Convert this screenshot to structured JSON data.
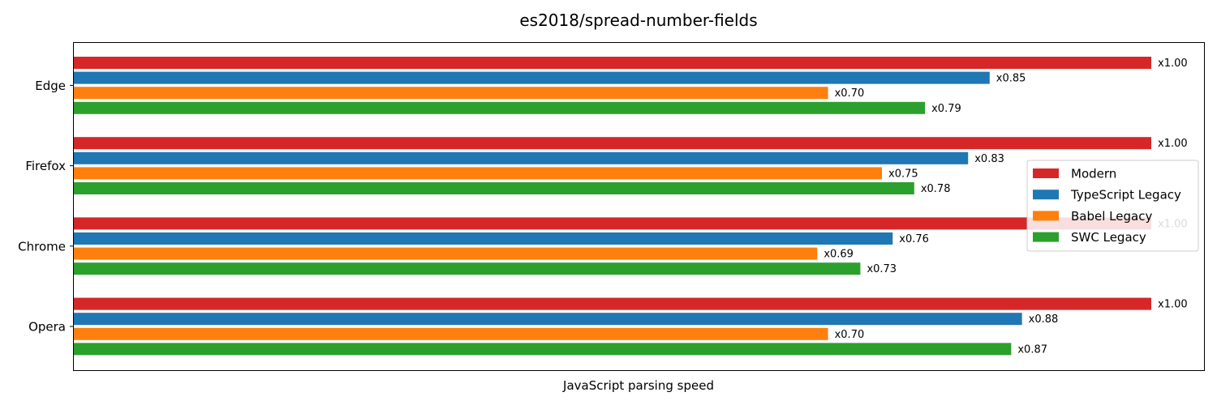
{
  "chart_data": {
    "type": "bar",
    "orientation": "horizontal",
    "title": "es2018/spread-number-fields",
    "xlabel": "JavaScript parsing speed",
    "ylabel": "",
    "categories": [
      "Edge",
      "Firefox",
      "Chrome",
      "Opera"
    ],
    "series": [
      {
        "name": "Modern",
        "color": "#d62728",
        "values": [
          1.0,
          1.0,
          1.0,
          1.0
        ],
        "labels": [
          "x1.00",
          "x1.00",
          "x1.00",
          "x1.00"
        ]
      },
      {
        "name": "TypeScript Legacy",
        "color": "#1f77b4",
        "values": [
          0.85,
          0.83,
          0.76,
          0.88
        ],
        "labels": [
          "x0.85",
          "x0.83",
          "x0.76",
          "x0.88"
        ]
      },
      {
        "name": "Babel Legacy",
        "color": "#ff7f0e",
        "values": [
          0.7,
          0.75,
          0.69,
          0.7
        ],
        "labels": [
          "x0.70",
          "x0.75",
          "x0.69",
          "x0.70"
        ]
      },
      {
        "name": "SWC Legacy",
        "color": "#2ca02c",
        "values": [
          0.79,
          0.78,
          0.73,
          0.87
        ],
        "labels": [
          "x0.79",
          "x0.78",
          "x0.73",
          "x0.87"
        ]
      }
    ],
    "xticks_visible": false,
    "grid": false,
    "legend_position": "right"
  }
}
